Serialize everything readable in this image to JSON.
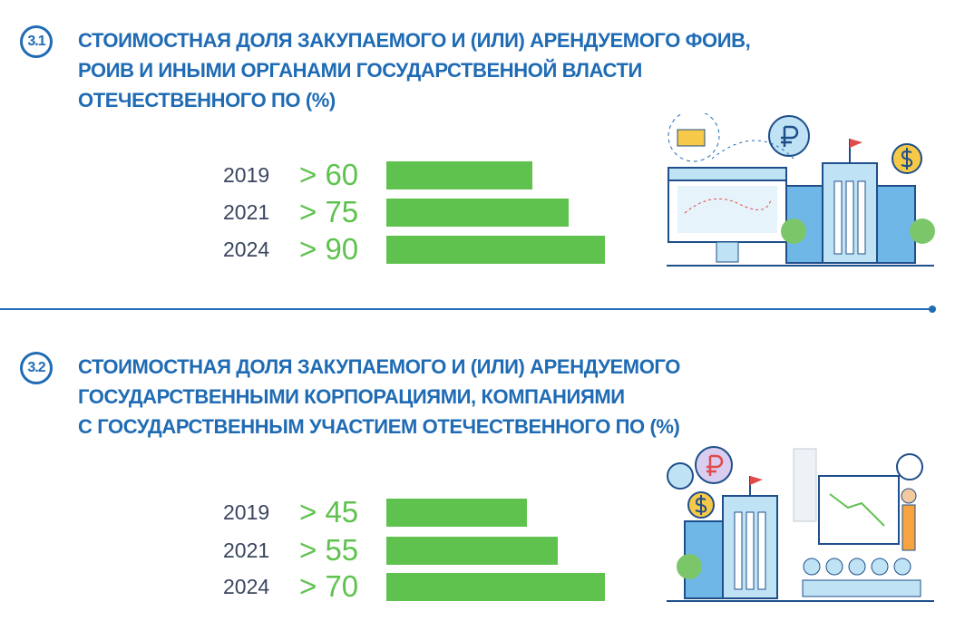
{
  "chart_data": [
    {
      "type": "bar",
      "id": "3.1",
      "title_lines": [
        "СТОИМОСТНАЯ ДОЛЯ ЗАКУПАЕМОГО И (ИЛИ) АРЕНДУЕМОГО ФОИВ,",
        "РОИВ И ИНЫМИ ОРГАНАМИ ГОСУДАРСТВЕННОЙ ВЛАСТИ",
        "ОТЕЧЕСТВЕННОГО ПО (%)"
      ],
      "categories": [
        "2019",
        "2021",
        "2024"
      ],
      "values": [
        60,
        75,
        90
      ],
      "labels": [
        "> 60",
        "> 75",
        "> 90"
      ],
      "orientation": "horizontal",
      "bar_color": "#5fc24f"
    },
    {
      "type": "bar",
      "id": "3.2",
      "title_lines": [
        "СТОИМОСТНАЯ ДОЛЯ ЗАКУПАЕМОГО И (ИЛИ) АРЕНДУЕМОГО",
        "ГОСУДАРСТВЕННЫМИ КОРПОРАЦИЯМИ, КОМПАНИЯМИ",
        "С ГОСУДАРСТВЕННЫМ УЧАСТИЕМ ОТЕЧЕСТВЕННОГО ПО (%)"
      ],
      "categories": [
        "2019",
        "2021",
        "2024"
      ],
      "values": [
        45,
        55,
        70
      ],
      "labels": [
        "> 45",
        "> 55",
        "> 70"
      ],
      "orientation": "horizontal",
      "bar_color": "#5fc24f"
    }
  ],
  "colors": {
    "title": "#1f6bb4",
    "year": "#3a4560",
    "accent": "#5fc24f"
  }
}
